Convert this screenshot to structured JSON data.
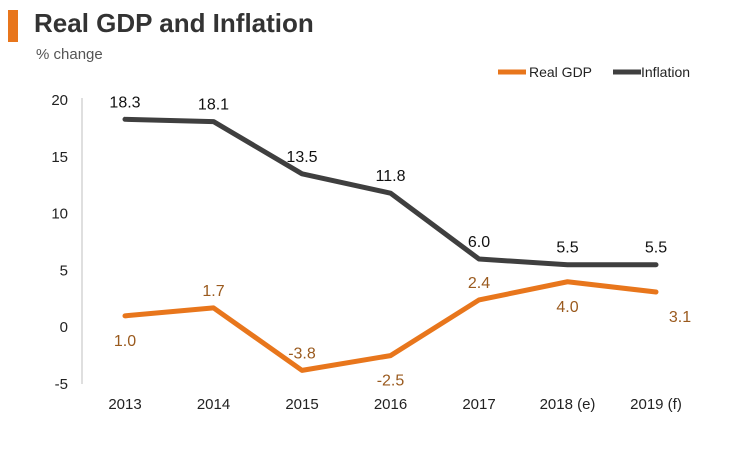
{
  "header": {
    "title": "Real GDP and Inflation",
    "subtitle": "% change",
    "accent_color": "#E8761C"
  },
  "chart_data": {
    "type": "line",
    "title": "Real GDP and Inflation",
    "ylabel": "% change",
    "xlabel": "",
    "categories": [
      "2013",
      "2014",
      "2015",
      "2016",
      "2017",
      "2018 (e)",
      "2019 (f)"
    ],
    "yticks": [
      "-5",
      "0",
      "5",
      "10",
      "15",
      "20"
    ],
    "ylim": [
      -5,
      20
    ],
    "grid": false,
    "legend_position": "top-right",
    "series": [
      {
        "name": "Real GDP",
        "color": "#E8761C",
        "label_color": "#9A5A1E",
        "values": [
          1.0,
          1.7,
          -3.8,
          -2.5,
          2.4,
          4.0,
          3.1
        ],
        "labels": [
          "1.0",
          "1.7",
          "-3.8",
          "-2.5",
          "2.4",
          "4.0",
          "3.1"
        ]
      },
      {
        "name": "Inflation",
        "color": "#3F3F3F",
        "label_color": "#111111",
        "values": [
          18.3,
          18.1,
          13.5,
          11.8,
          6.0,
          5.5,
          5.5
        ],
        "labels": [
          "18.3",
          "18.1",
          "13.5",
          "11.8",
          "6.0",
          "5.5",
          "5.5"
        ]
      }
    ]
  }
}
